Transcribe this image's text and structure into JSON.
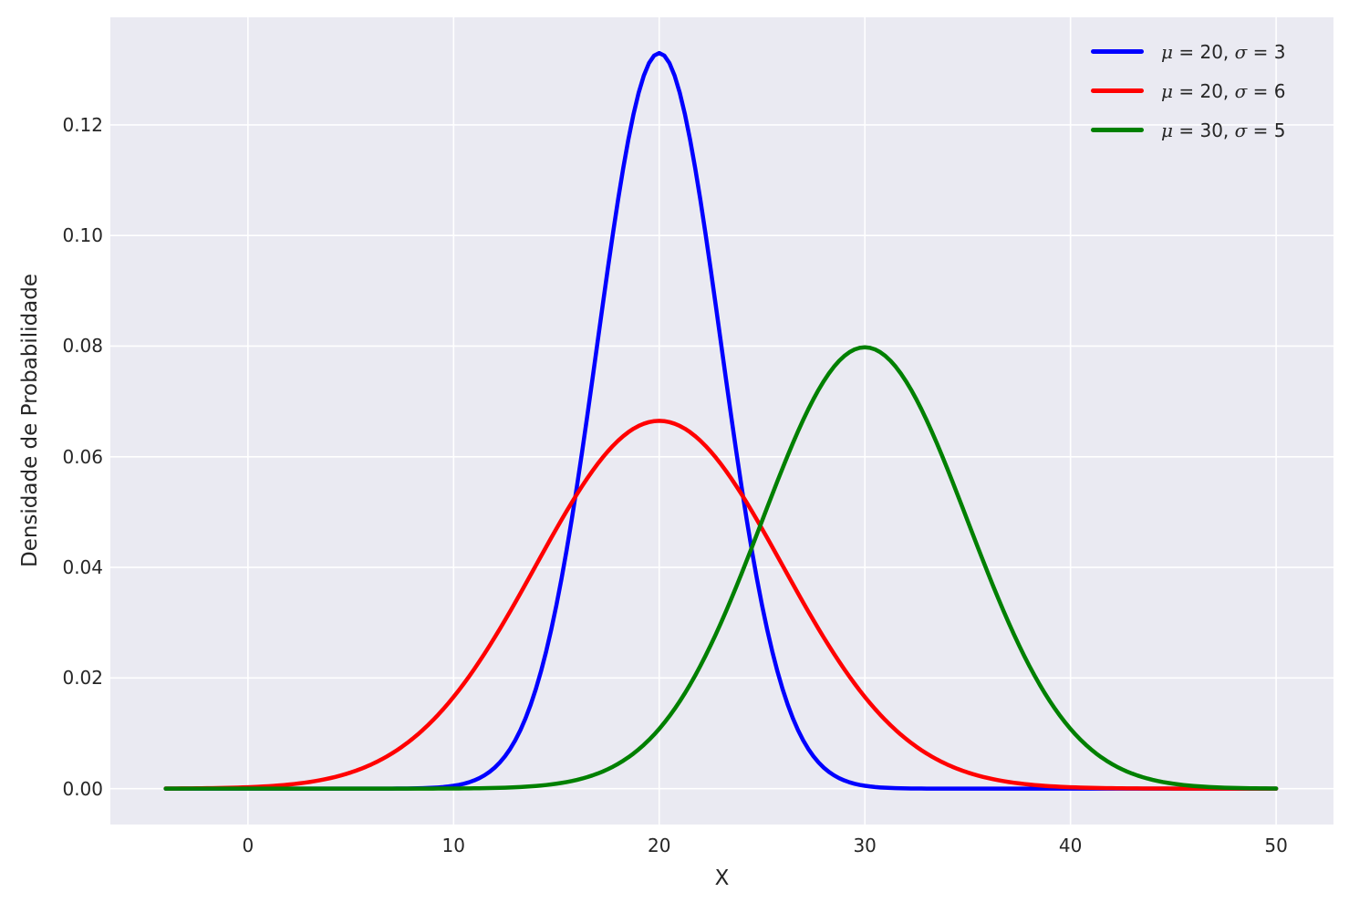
{
  "chart_data": {
    "type": "line",
    "title": "",
    "xlabel": "X",
    "ylabel": "Densidade de Probabilidade",
    "xlim": [
      -6.69,
      52.79
    ],
    "ylim": [
      -0.00649,
      0.13944
    ],
    "x_ticks": {
      "values": [
        0,
        10,
        20,
        30,
        40,
        50
      ],
      "labels": [
        "0",
        "10",
        "20",
        "30",
        "40",
        "50"
      ]
    },
    "y_ticks": {
      "values": [
        0.0,
        0.02,
        0.04,
        0.06,
        0.08,
        0.1,
        0.12
      ],
      "labels": [
        "0.00",
        "0.02",
        "0.04",
        "0.06",
        "0.08",
        "0.10",
        "0.12"
      ]
    },
    "grid": true,
    "plot_background": "#eaeaf2",
    "gridline_color": "#ffffff",
    "text_color": "#262626",
    "legend": {
      "location": "upper right",
      "frame": false
    },
    "curve_type": "normal_pdf",
    "x_data_range": [
      -4,
      50
    ],
    "series": [
      {
        "label": "μ = 20, σ = 3",
        "mu": 20,
        "sigma": 3,
        "color": "#0000ff",
        "peak_x": 20,
        "peak_y": 0.133
      },
      {
        "label": "μ = 20, σ = 6",
        "mu": 20,
        "sigma": 6,
        "color": "#ff0000",
        "peak_x": 20,
        "peak_y": 0.0665
      },
      {
        "label": "μ = 30, σ = 5",
        "mu": 30,
        "sigma": 5,
        "color": "#008000",
        "peak_x": 30,
        "peak_y": 0.0798
      }
    ]
  }
}
